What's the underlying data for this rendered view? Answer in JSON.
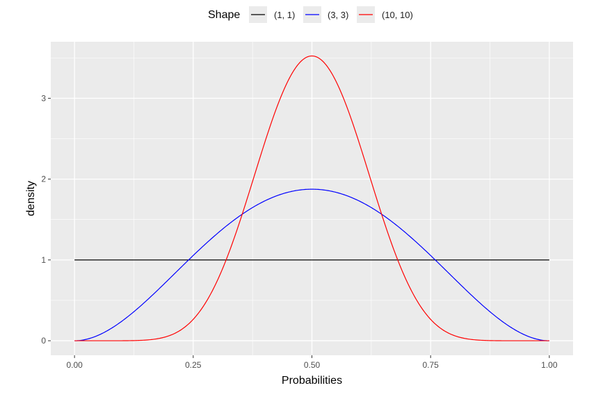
{
  "chart_data": {
    "type": "line",
    "xlabel": "Probabilities",
    "ylabel": "density",
    "xlim": [
      -0.05,
      1.05
    ],
    "ylim": [
      -0.18,
      3.7
    ],
    "x_ticks": [
      0,
      0.25,
      0.5,
      0.75,
      1
    ],
    "x_tick_labels": [
      "0.00",
      "0.25",
      "0.50",
      "0.75",
      "1.00"
    ],
    "y_ticks": [
      0,
      1,
      2,
      3
    ],
    "y_tick_labels": [
      "0",
      "1",
      "2",
      "3"
    ],
    "grid": true,
    "legend": {
      "title": "Shape",
      "position": "top"
    },
    "series": [
      {
        "name": "(1, 1)",
        "alpha": 1,
        "beta": 1,
        "color": "#000000"
      },
      {
        "name": "(3, 3)",
        "alpha": 3,
        "beta": 3,
        "color": "#0000ff"
      },
      {
        "name": "(10, 10)",
        "alpha": 10,
        "beta": 10,
        "color": "#ff0000"
      }
    ]
  },
  "colors": {
    "panel_background": "#ebebeb",
    "gridline": "#ffffff"
  }
}
